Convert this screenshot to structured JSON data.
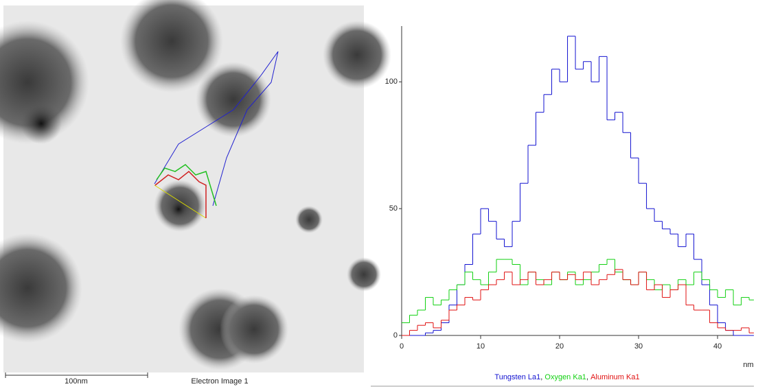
{
  "image": {
    "scale_bar": "100nm",
    "caption": "Electron Image 1"
  },
  "chart_data": {
    "type": "line",
    "x_label": "nm",
    "legend_separator": ",",
    "x": [
      0,
      1,
      2,
      3,
      4,
      5,
      6,
      7,
      8,
      9,
      10,
      11,
      12,
      13,
      14,
      15,
      16,
      17,
      18,
      19,
      20,
      21,
      22,
      23,
      24,
      25,
      26,
      27,
      28,
      29,
      30,
      31,
      32,
      33,
      34,
      35,
      36,
      37,
      38,
      39,
      40,
      41,
      42,
      43,
      44
    ],
    "series": [
      {
        "name": "Tungsten La1",
        "color": "#1010d0",
        "values": [
          0,
          0,
          0,
          1,
          2,
          5,
          12,
          20,
          28,
          40,
          50,
          45,
          38,
          35,
          45,
          60,
          75,
          88,
          95,
          105,
          100,
          118,
          105,
          108,
          100,
          110,
          85,
          88,
          80,
          70,
          60,
          50,
          45,
          42,
          40,
          35,
          40,
          30,
          20,
          12,
          5,
          2,
          0,
          0,
          0
        ]
      },
      {
        "name": "Oxygen Ka1",
        "color": "#10d010",
        "values": [
          5,
          8,
          10,
          15,
          12,
          14,
          18,
          20,
          25,
          22,
          20,
          25,
          30,
          30,
          28,
          20,
          25,
          22,
          20,
          25,
          22,
          25,
          20,
          22,
          25,
          28,
          30,
          25,
          22,
          20,
          25,
          22,
          18,
          20,
          18,
          22,
          20,
          25,
          22,
          18,
          15,
          18,
          12,
          15,
          14
        ]
      },
      {
        "name": "Aluminum Ka1",
        "color": "#e01010",
        "values": [
          0,
          2,
          4,
          5,
          3,
          6,
          10,
          12,
          15,
          14,
          18,
          20,
          22,
          25,
          20,
          22,
          25,
          20,
          22,
          25,
          22,
          24,
          22,
          25,
          20,
          22,
          24,
          26,
          22,
          20,
          25,
          18,
          20,
          15,
          18,
          20,
          12,
          10,
          10,
          5,
          3,
          2,
          2,
          3,
          1
        ]
      }
    ],
    "xlim": [
      0,
      44.6
    ],
    "ylim": [
      0,
      122
    ],
    "xticks": [
      0,
      10,
      20,
      30,
      40
    ],
    "yticks": [
      0,
      50,
      100
    ]
  }
}
